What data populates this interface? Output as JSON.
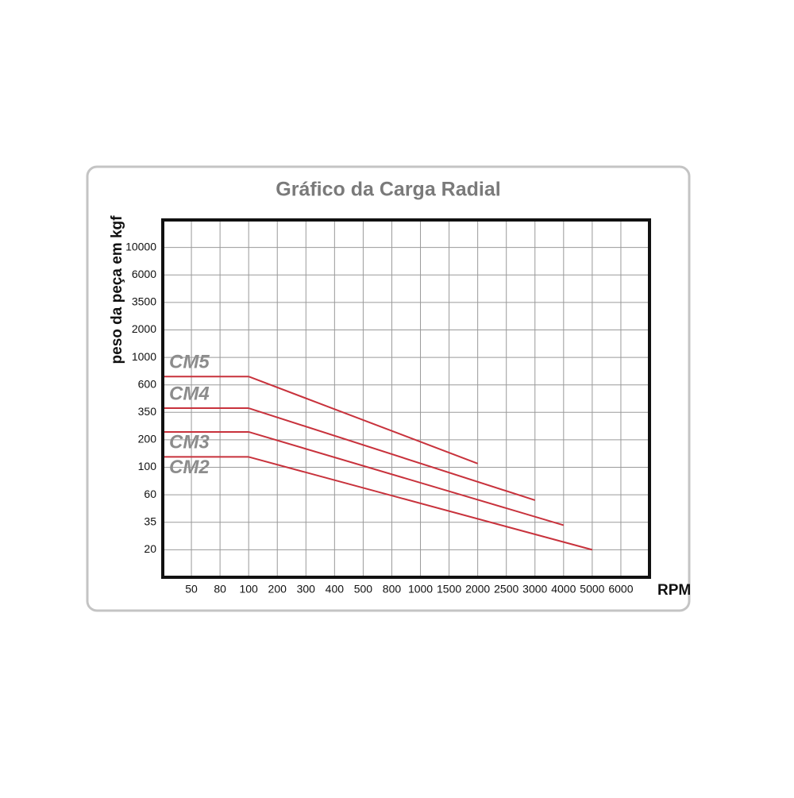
{
  "chart_data": {
    "type": "line",
    "title": "Gráfico da Carga Radial",
    "y_label": "peso da peça em kgf",
    "x_label": "RPM",
    "xticks": [
      50,
      80,
      100,
      200,
      300,
      400,
      500,
      800,
      1000,
      1500,
      2000,
      2500,
      3000,
      4000,
      5000,
      6000
    ],
    "yticks": [
      20,
      35,
      60,
      100,
      200,
      350,
      600,
      1000,
      2000,
      3500,
      6000,
      10000
    ],
    "grid": true,
    "series": [
      {
        "name": "CM5",
        "color": "#c8323c",
        "x": [
          100,
          2000
        ],
        "values": [
          700,
          110
        ]
      },
      {
        "name": "CM4",
        "color": "#c8323c",
        "x": [
          100,
          3000
        ],
        "values": [
          380,
          54
        ]
      },
      {
        "name": "CM3",
        "color": "#c8323c",
        "x": [
          100,
          4000
        ],
        "values": [
          235,
          33
        ]
      },
      {
        "name": "CM2",
        "color": "#c8323c",
        "x": [
          100,
          5000
        ],
        "values": [
          130,
          20
        ]
      }
    ]
  }
}
